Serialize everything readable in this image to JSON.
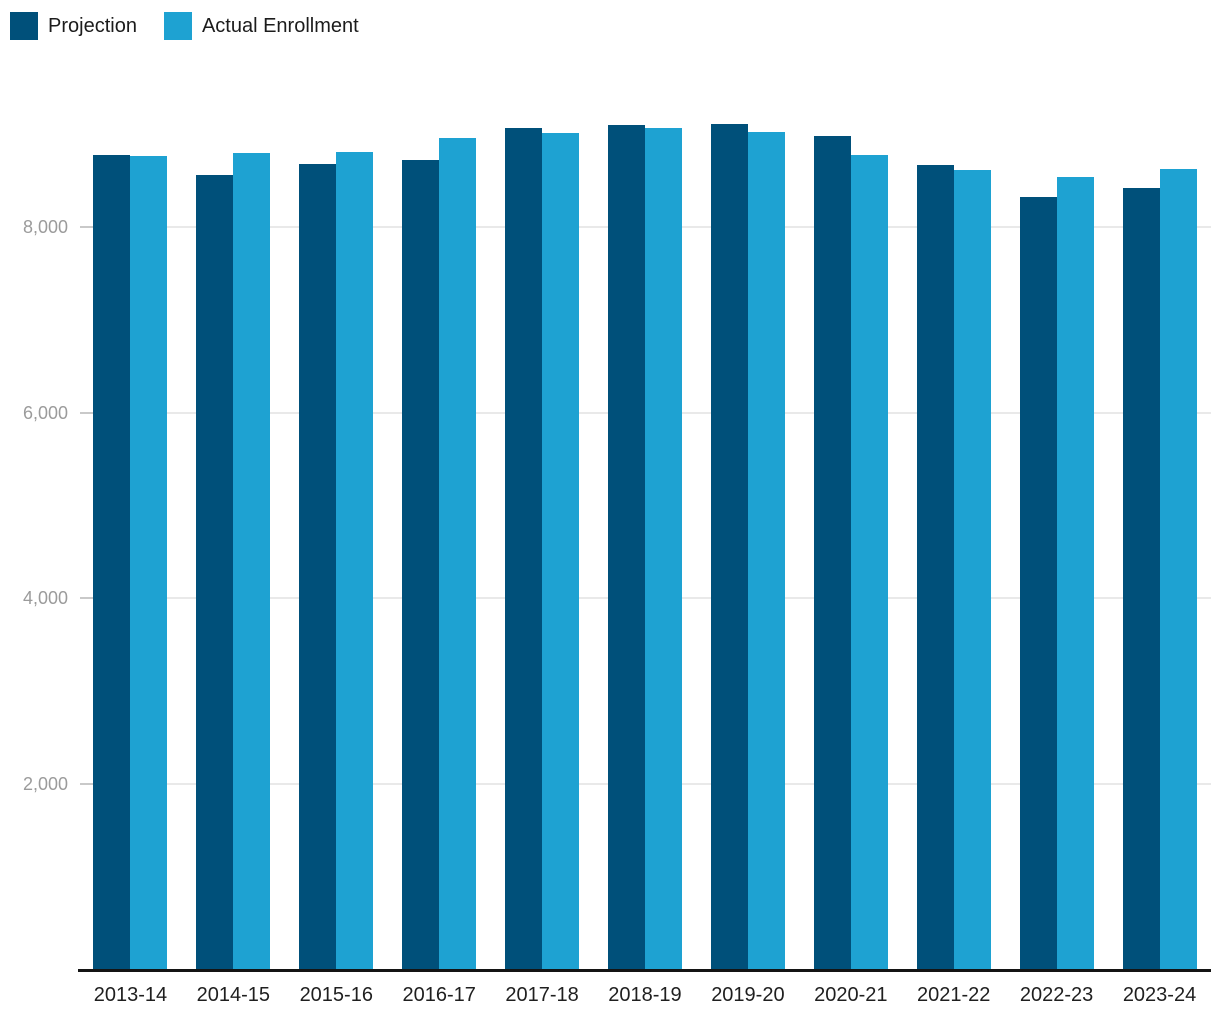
{
  "chart_data": {
    "type": "bar",
    "title": "",
    "xlabel": "",
    "ylabel": "",
    "categories": [
      "2013-14",
      "2014-15",
      "2015-16",
      "2016-17",
      "2017-18",
      "2018-19",
      "2019-20",
      "2020-21",
      "2021-22",
      "2022-23",
      "2023-24"
    ],
    "series": [
      {
        "name": "Projection",
        "color": "#00507a",
        "values": [
          8780,
          8560,
          8685,
          8720,
          9070,
          9100,
          9110,
          8980,
          8665,
          8320,
          8425
        ]
      },
      {
        "name": "Actual Enrollment",
        "color": "#1ea2d2",
        "values": [
          8765,
          8800,
          8810,
          8955,
          9015,
          9070,
          9025,
          8775,
          8615,
          8535,
          8625
        ]
      }
    ],
    "yticks": [
      2000,
      4000,
      6000,
      8000
    ],
    "ytick_labels": [
      "2,000",
      "4,000",
      "6,000",
      "8,000"
    ],
    "ylim": [
      0,
      9380
    ],
    "grid": true,
    "legend_position": "top-left",
    "colors": {
      "gridline": "#e9e9e9",
      "tick": "#c9c9c9",
      "axis_line": "#141414",
      "ytick_text": "#9b9b9b",
      "xtick_text": "#1f1f1f",
      "legend_text": "#1c1c1c",
      "background": "#ffffff"
    }
  }
}
